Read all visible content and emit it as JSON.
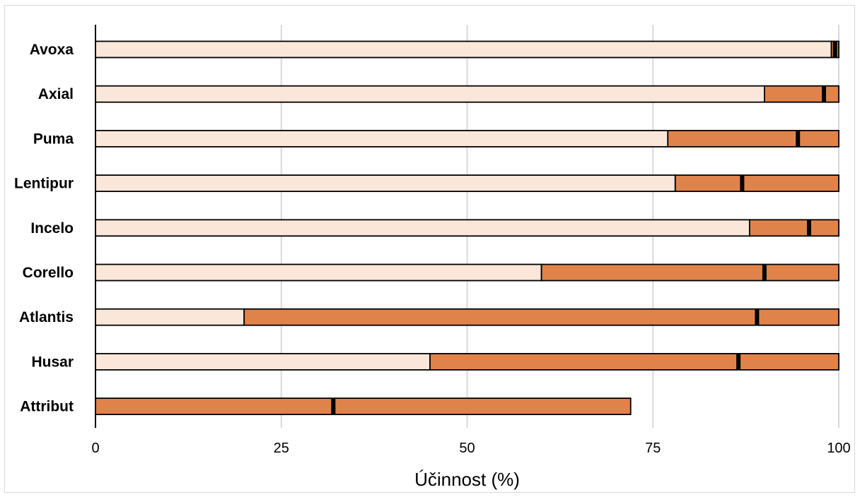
{
  "chart_data": {
    "type": "bar",
    "orientation": "horizontal",
    "stacked": true,
    "title": "",
    "xlabel": "Účinnost (%)",
    "ylabel": "",
    "xlim": [
      0,
      100
    ],
    "x_ticks": [
      0,
      25,
      50,
      75,
      100
    ],
    "grid": "vertical",
    "legend": "none",
    "categories": [
      "Avoxa",
      "Axial",
      "Puma",
      "Lentipur",
      "Incelo",
      "Corello",
      "Atlantis",
      "Husar",
      "Attribut"
    ],
    "series": [
      {
        "color": "#fae7d9",
        "values": [
          99,
          90,
          77,
          78,
          88,
          60,
          20,
          45,
          0
        ]
      },
      {
        "color": "#e0834a",
        "values": [
          1,
          10,
          23,
          22,
          12,
          40,
          80,
          55,
          72
        ]
      }
    ],
    "markers": [
      99.5,
      98,
      94.5,
      87,
      96,
      90,
      89,
      86.5,
      32
    ]
  }
}
